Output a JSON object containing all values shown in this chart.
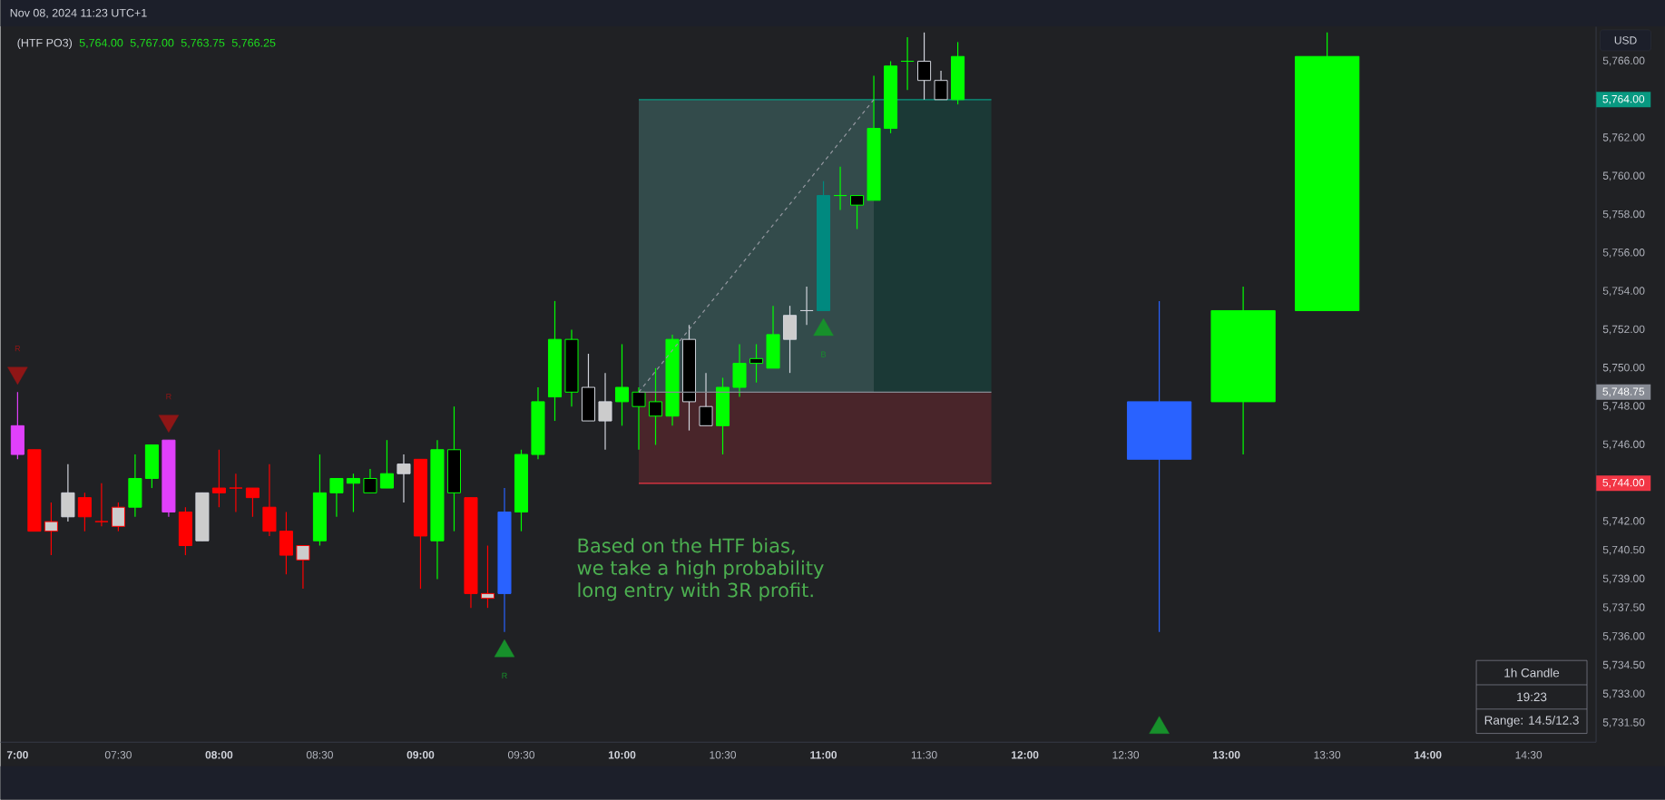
{
  "chart_data": {
    "type": "candlestick",
    "title": "(HTF PO3)",
    "annotations": [
      "Nov 08, 2024 11:23 UTC+1",
      "5,764.00",
      "5,767.00",
      "5,763.75",
      "5,766.25",
      "Based on the HTF bias,",
      "we take a high probability",
      "long entry with 3R profit.",
      "1h Candle",
      "19:23",
      "Range: 14.5/12.3",
      "USD"
    ],
    "xlim": [
      6.915,
      14.835
    ],
    "ylim": [
      5730.5,
      5767.8
    ],
    "xticks": [
      {
        "value": 7,
        "label": "7:00"
      },
      {
        "value": 7.5,
        "label": "07:30"
      },
      {
        "value": 8,
        "label": "08:00"
      },
      {
        "value": 8.5,
        "label": "08:30"
      },
      {
        "value": 9,
        "label": "09:00"
      },
      {
        "value": 9.5,
        "label": "09:30"
      },
      {
        "value": 10,
        "label": "10:00"
      },
      {
        "value": 10.5,
        "label": "10:30"
      },
      {
        "value": 11,
        "label": "11:00"
      },
      {
        "value": 11.5,
        "label": "11:30"
      },
      {
        "value": 12,
        "label": "12:00"
      },
      {
        "value": 12.5,
        "label": "12:30"
      },
      {
        "value": 13,
        "label": "13:00"
      },
      {
        "value": 13.5,
        "label": "13:30"
      },
      {
        "value": 14,
        "label": "14:00"
      },
      {
        "value": 14.5,
        "label": "14:30"
      }
    ],
    "yticks": [
      {
        "value": 5766,
        "label": "5,766.00"
      },
      {
        "value": 5764,
        "label": "5,764.00"
      },
      {
        "value": 5762,
        "label": "5,762.00"
      },
      {
        "value": 5760,
        "label": "5,760.00"
      },
      {
        "value": 5758,
        "label": "5,758.00"
      },
      {
        "value": 5756,
        "label": "5,756.00"
      },
      {
        "value": 5754,
        "label": "5,754.00"
      },
      {
        "value": 5752,
        "label": "5,752.00"
      },
      {
        "value": 5750,
        "label": "5,750.00"
      },
      {
        "value": 5748.75,
        "label": "5,748.75"
      },
      {
        "value": 5748,
        "label": "5,748.00"
      },
      {
        "value": 5746,
        "label": "5,746.00"
      },
      {
        "value": 5744,
        "label": "5,744.00"
      },
      {
        "value": 5742,
        "label": "5,742.00"
      },
      {
        "value": 5740.5,
        "label": "5,740.50"
      },
      {
        "value": 5739,
        "label": "5,739.00"
      },
      {
        "value": 5737.5,
        "label": "5,737.50"
      },
      {
        "value": 5736,
        "label": "5,736.00"
      },
      {
        "value": 5734.5,
        "label": "5,734.50"
      },
      {
        "value": 5733,
        "label": "5,733.00"
      },
      {
        "value": 5731.5,
        "label": "5,731.50"
      }
    ],
    "series": [
      {
        "type": "line",
        "x": [
          10.0833,
          11.8333
        ],
        "values": [
          5764,
          5764
        ],
        "lower": [
          5748.75,
          5748.75
        ],
        "upper": [
          5764,
          5764
        ],
        "color": "#089981"
      },
      {
        "type": "line",
        "x": [
          10.0833,
          11.8333
        ],
        "values": [
          5744,
          5744
        ],
        "lower": [
          5744,
          5744
        ],
        "upper": [
          5748.75,
          5748.75
        ],
        "color": "#f23645"
      },
      {
        "color": "#ff0000",
        "x": [
          7.0833,
          7.1667,
          7.3333,
          7.4167,
          7.5,
          7.8333,
          8.0,
          8.0833,
          8.1667,
          8.25,
          8.3333,
          8.4167,
          9.0,
          9.25,
          9.3333
        ],
        "ohlc": [
          [
            5745.75,
            5745.75,
            5741.5,
            5741.5
          ],
          [
            5741.5,
            5743.0,
            5740.25,
            5742.0
          ],
          [
            5743.25,
            5743.5,
            5741.5,
            5742.25
          ],
          [
            5742.0,
            5744.0,
            5741.75,
            5742.0
          ],
          [
            5741.75,
            5743.0,
            5741.5,
            5742.75
          ],
          [
            5742.5,
            5742.75,
            5740.25,
            5740.75
          ],
          [
            5743.75,
            5745.75,
            5742.75,
            5743.5
          ],
          [
            5743.75,
            5744.5,
            5742.5,
            5743.75
          ],
          [
            5743.75,
            5743.75,
            5742.25,
            5743.25
          ],
          [
            5742.75,
            5745.0,
            5741.25,
            5741.5
          ],
          [
            5741.5,
            5742.5,
            5739.25,
            5740.25
          ],
          [
            5740.0,
            5740.75,
            5738.5,
            5740.75
          ],
          [
            5745.25,
            5745.25,
            5738.5,
            5741.25
          ],
          [
            5743.25,
            5743.25,
            5737.5,
            5738.25
          ],
          [
            5738.0,
            5740.75,
            5737.5,
            5738.25
          ]
        ],
        "colors": [
          "#ff0000",
          "#cccccc",
          "#ff0000",
          "#ff0000",
          "#cccccc",
          "#ff0000",
          "#ff0000",
          "#ff0000",
          "#ff0000",
          "#ff0000",
          "#ff0000",
          "#cccccc",
          "#ff0000",
          "#ff0000",
          "#cccccc"
        ]
      },
      {
        "color": "#00ff00",
        "x": [
          7.5833,
          7.6667,
          8.5,
          8.5833,
          8.6667,
          8.75,
          8.8333,
          9.0833,
          9.1667,
          9.5,
          9.5833,
          9.6667,
          9.75,
          10.0,
          10.0833,
          10.1667,
          10.25,
          10.5,
          10.5833,
          10.6667,
          10.75,
          11.0833,
          11.1667,
          11.25,
          11.3333,
          11.4167,
          11.6667
        ],
        "ohlc": [
          [
            5742.75,
            5745.5,
            5742.25,
            5744.25
          ],
          [
            5744.25,
            5746.0,
            5743.75,
            5746.0
          ],
          [
            5741.0,
            5745.5,
            5740.75,
            5743.5
          ],
          [
            5743.5,
            5744.25,
            5742.25,
            5744.25
          ],
          [
            5744.0,
            5744.5,
            5742.5,
            5744.25
          ],
          [
            5744.25,
            5744.75,
            5743.5,
            5743.5
          ],
          [
            5743.75,
            5746.25,
            5743.75,
            5744.5
          ],
          [
            5741.0,
            5746.25,
            5739.0,
            5745.75
          ],
          [
            5745.75,
            5748.0,
            5741.5,
            5743.5
          ],
          [
            5742.5,
            5745.75,
            5741.5,
            5745.5
          ],
          [
            5745.5,
            5749.0,
            5745.25,
            5748.25
          ],
          [
            5748.5,
            5753.5,
            5747.25,
            5751.5
          ],
          [
            5751.5,
            5752.0,
            5748.0,
            5748.75
          ],
          [
            5748.25,
            5751.25,
            5747.0,
            5749.0
          ],
          [
            5748.75,
            5749.0,
            5745.75,
            5748.0
          ],
          [
            5748.25,
            5750.0,
            5746.0,
            5747.5
          ],
          [
            5747.5,
            5751.75,
            5747.0,
            5751.5
          ],
          [
            5747.0,
            5749.5,
            5745.5,
            5749.0
          ],
          [
            5749.0,
            5751.25,
            5748.5,
            5750.25
          ],
          [
            5750.5,
            5751.25,
            5749.25,
            5750.25
          ],
          [
            5750.0,
            5753.25,
            5750.0,
            5751.75
          ],
          [
            5759.0,
            5760.5,
            5758.25,
            5759.0
          ],
          [
            5759.0,
            5759.0,
            5757.25,
            5758.5
          ],
          [
            5758.75,
            5765.25,
            5758.75,
            5762.5
          ],
          [
            5762.5,
            5766.0,
            5762.25,
            5765.75
          ],
          [
            5766.0,
            5767.25,
            5764.5,
            5766.0
          ],
          [
            5764.0,
            5767.0,
            5763.75,
            5766.25
          ]
        ],
        "colors": [
          "#00ff00",
          "#00ff00",
          "#00ff00",
          "#00ff00",
          "#00ff00",
          "#000000",
          "#00ff00",
          "#00ff00",
          "#000000",
          "#00ff00",
          "#00ff00",
          "#00ff00",
          "#000000",
          "#00ff00",
          "#000000",
          "#000000",
          "#00ff00",
          "#00ff00",
          "#00ff00",
          "#000000",
          "#00ff00",
          "#00ff00",
          "#000000",
          "#00ff00",
          "#00ff00",
          "#00ff00",
          "#00ff00"
        ]
      },
      {
        "color": "#d1d4dc",
        "x": [
          7.25,
          7.9167,
          8.9167,
          9.8333,
          9.9167,
          10.3333,
          10.4167,
          10.8333,
          10.9167,
          11.5,
          11.5833
        ],
        "ohlc": [
          [
            5742.25,
            5745.0,
            5742.0,
            5743.5
          ],
          [
            5741.0,
            5743.5,
            5741.0,
            5743.5
          ],
          [
            5744.5,
            5745.5,
            5743.0,
            5745.0
          ],
          [
            5749.0,
            5750.75,
            5747.25,
            5747.25
          ],
          [
            5747.25,
            5749.75,
            5745.75,
            5748.25
          ],
          [
            5751.5,
            5752.25,
            5746.75,
            5748.25
          ],
          [
            5748.0,
            5749.75,
            5747.0,
            5747.0
          ],
          [
            5751.5,
            5753.25,
            5749.75,
            5752.75
          ],
          [
            5753.0,
            5754.25,
            5752.25,
            5753.0
          ],
          [
            5766.0,
            5767.5,
            5764.0,
            5765.0
          ],
          [
            5765.0,
            5765.5,
            5764.0,
            5764.0
          ]
        ],
        "colors": [
          "#cccccc",
          "#cccccc",
          "#cccccc",
          "#000000",
          "#cccccc",
          "#000000",
          "#000000",
          "#cccccc",
          "#cccccc",
          "#000000",
          "#000000"
        ]
      },
      {
        "color": "#e040fb",
        "x": [
          7.0,
          7.75
        ],
        "ohlc": [
          [
            5747.0,
            5748.75,
            5745.25,
            5745.5
          ],
          [
            5746.25,
            5746.25,
            5742.25,
            5742.5
          ]
        ]
      },
      {
        "color": "#2962ff",
        "x": [
          9.4167
        ],
        "ohlc": [
          [
            5738.25,
            5743.75,
            5736.25,
            5742.5
          ]
        ]
      },
      {
        "color": "#00897f",
        "x": [
          11.0
        ],
        "ohlc": [
          [
            5753.0,
            5759.75,
            5753.0,
            5759.0
          ]
        ]
      },
      {
        "color": "#2962ff",
        "x": [
          12.6667
        ],
        "ohlc": [
          [
            5745.25,
            5753.5,
            5736.25,
            5748.25
          ]
        ]
      },
      {
        "color": "#00ff00",
        "x": [
          13.0833,
          13.5
        ],
        "ohlc": [
          [
            5748.25,
            5754.25,
            5745.5,
            5753.0
          ],
          [
            5753.0,
            5767.5,
            5753.0,
            5766.25
          ]
        ]
      },
      {
        "type": "line",
        "x": [
          10.0833,
          11.8333
        ],
        "values": [
          5748.75,
          5748.75
        ],
        "color": "#878b94",
        "line_style": "solid"
      },
      {
        "type": "line",
        "x": [
          10.0833,
          11.25
        ],
        "values": [
          5748.75,
          5764
        ],
        "lower": [
          5748.75,
          5748.75
        ],
        "upper": [
          5764,
          5764
        ],
        "color": "#9598a1",
        "line_style": "dashed"
      },
      {
        "type": "scatter",
        "x": [
          7.0,
          7.75
        ],
        "values": [
          5749.75,
          5747.25
        ],
        "color": "#8e1616",
        "marker": "triangle_down",
        "value_labels": [
          "R",
          "R"
        ]
      },
      {
        "type": "scatter",
        "x": [
          9.4167,
          11.0,
          12.6667
        ],
        "values": [
          5735.25,
          5752.0,
          5731.25
        ],
        "color": "#17902b",
        "marker": "triangle",
        "value_labels": [
          "R",
          "B",
          null
        ]
      }
    ]
  }
}
